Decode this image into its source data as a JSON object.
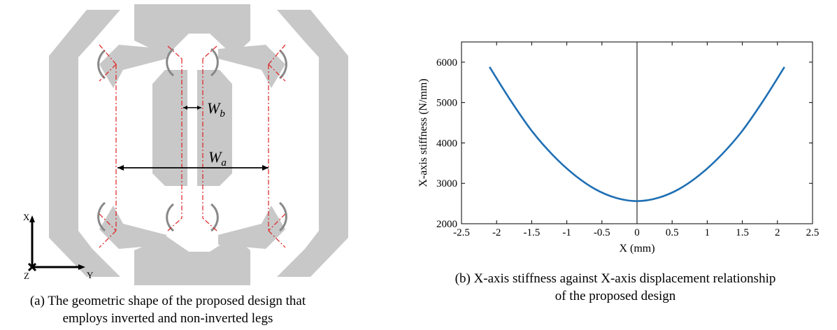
{
  "figure_a": {
    "labels": {
      "wb_main": "W",
      "wb_sub": "b",
      "wa_main": "W",
      "wa_sub": "a",
      "axis_x": "X",
      "axis_y": "Y",
      "axis_z": "Z"
    },
    "caption_line1": "(a) The geometric shape of the proposed design that",
    "caption_line2": "employs inverted and non-inverted legs",
    "colors": {
      "body": "#c8c8c8",
      "dash": "#e02020",
      "outline": "#888888"
    }
  },
  "chart_data": {
    "type": "line",
    "title": "",
    "xlabel": "X (mm)",
    "ylabel": "X-axis stiffness (N/mm)",
    "xlim": [
      -2.5,
      2.5
    ],
    "ylim": [
      2000,
      6500
    ],
    "xticks": [
      "-2.5",
      "-2",
      "-1.5",
      "-1",
      "-0.5",
      "0",
      "0.5",
      "1",
      "1.5",
      "2",
      "2.5"
    ],
    "yticks": [
      "2000",
      "3000",
      "4000",
      "5000",
      "6000"
    ],
    "grid": false,
    "series": [
      {
        "color": "#1f6fb4",
        "x": [
          -2.1,
          -1.8,
          -1.5,
          -1.2,
          -0.9,
          -0.6,
          -0.3,
          0,
          0.3,
          0.6,
          0.9,
          1.2,
          1.5,
          1.8,
          2.1
        ],
        "y": [
          5880,
          5050,
          4300,
          3700,
          3220,
          2860,
          2640,
          2560,
          2640,
          2860,
          3220,
          3700,
          4300,
          5050,
          5880
        ]
      }
    ],
    "caption_line1": "(b) X-axis stiffness against X-axis displacement relationship",
    "caption_line2": "of the proposed design"
  }
}
